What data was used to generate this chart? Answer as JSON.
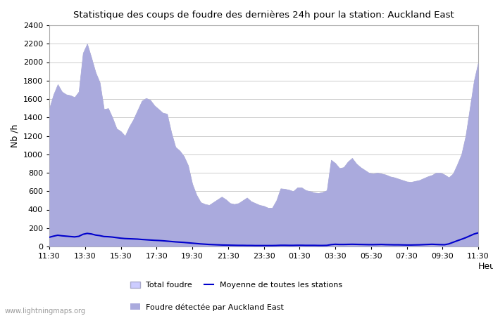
{
  "title": "Statistique des coups de foudre des dernières 24h pour la station: Auckland East",
  "xlabel": "Heure",
  "ylabel": "Nb /h",
  "ylim": [
    0,
    2400
  ],
  "yticks": [
    0,
    200,
    400,
    600,
    800,
    1000,
    1200,
    1400,
    1600,
    1800,
    2000,
    2200,
    2400
  ],
  "xtick_labels": [
    "11:30",
    "13:30",
    "15:30",
    "17:30",
    "19:30",
    "21:30",
    "23:30",
    "01:30",
    "03:30",
    "05:30",
    "07:30",
    "09:30",
    "11:30"
  ],
  "watermark": "www.lightningmaps.org",
  "bg_color": "#ffffff",
  "plot_bg_color": "#ffffff",
  "grid_color": "#cccccc",
  "total_foudre_color": "#ccccff",
  "total_foudre_edge": "#aaaacc",
  "detected_color": "#aaaadd",
  "mean_line_color": "#0000cc",
  "legend_labels": [
    "Total foudre",
    "Moyenne de toutes les stations",
    "Foudre détectée par Auckland East"
  ],
  "total_foudre": [
    1500,
    1650,
    1760,
    1680,
    1650,
    1640,
    1620,
    1680,
    2100,
    2200,
    2050,
    1890,
    1780,
    1490,
    1500,
    1400,
    1280,
    1250,
    1200,
    1300,
    1380,
    1480,
    1580,
    1610,
    1590,
    1530,
    1490,
    1450,
    1440,
    1240,
    1080,
    1040,
    980,
    880,
    680,
    560,
    480,
    460,
    450,
    480,
    510,
    540,
    510,
    470,
    460,
    470,
    500,
    530,
    490,
    470,
    450,
    440,
    420,
    420,
    500,
    630,
    625,
    615,
    600,
    640,
    640,
    610,
    600,
    585,
    580,
    590,
    610,
    940,
    905,
    850,
    860,
    920,
    960,
    900,
    860,
    830,
    800,
    790,
    800,
    790,
    780,
    760,
    750,
    735,
    720,
    705,
    700,
    710,
    720,
    740,
    760,
    775,
    800,
    800,
    780,
    750,
    790,
    890,
    1000,
    1200,
    1500,
    1800,
    2000
  ],
  "local_detected": [
    1500,
    1650,
    1760,
    1680,
    1650,
    1640,
    1620,
    1680,
    2100,
    2200,
    2050,
    1890,
    1780,
    1490,
    1500,
    1400,
    1280,
    1250,
    1200,
    1300,
    1380,
    1480,
    1580,
    1610,
    1590,
    1530,
    1490,
    1450,
    1440,
    1240,
    1080,
    1040,
    980,
    880,
    680,
    560,
    480,
    460,
    450,
    480,
    510,
    540,
    510,
    470,
    460,
    470,
    500,
    530,
    490,
    470,
    450,
    440,
    420,
    420,
    500,
    630,
    625,
    615,
    600,
    640,
    640,
    610,
    600,
    585,
    580,
    590,
    610,
    940,
    905,
    850,
    860,
    920,
    960,
    900,
    860,
    830,
    800,
    790,
    800,
    790,
    780,
    760,
    750,
    735,
    720,
    705,
    700,
    710,
    720,
    740,
    760,
    775,
    800,
    800,
    780,
    750,
    790,
    890,
    1000,
    1200,
    1500,
    1800,
    2000
  ],
  "mean_values": [
    100,
    112,
    122,
    116,
    112,
    108,
    104,
    110,
    132,
    142,
    136,
    124,
    118,
    108,
    106,
    102,
    96,
    90,
    86,
    84,
    82,
    80,
    76,
    73,
    70,
    67,
    65,
    62,
    58,
    54,
    50,
    47,
    44,
    40,
    36,
    32,
    28,
    25,
    22,
    20,
    18,
    16,
    15,
    14,
    13,
    12,
    12,
    11,
    11,
    10,
    10,
    10,
    10,
    10,
    11,
    13,
    13,
    12,
    12,
    13,
    13,
    12,
    12,
    12,
    11,
    11,
    12,
    20,
    24,
    22,
    22,
    23,
    24,
    23,
    22,
    21,
    20,
    20,
    21,
    22,
    20,
    19,
    18,
    18,
    17,
    16,
    16,
    17,
    18,
    20,
    22,
    24,
    22,
    20,
    19,
    28,
    45,
    62,
    78,
    95,
    115,
    135,
    148
  ]
}
